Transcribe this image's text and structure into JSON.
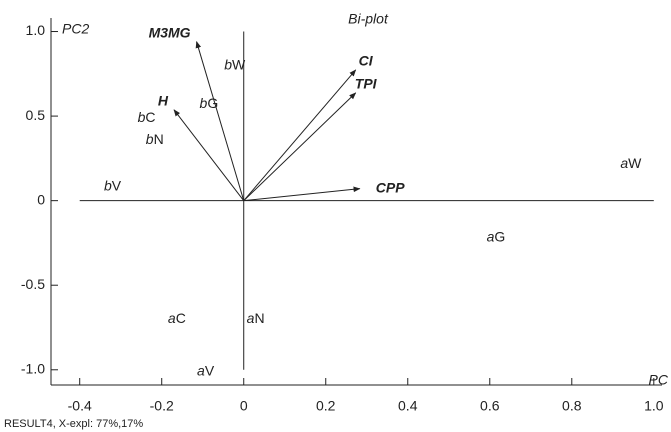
{
  "chart_data": {
    "type": "biplot",
    "title": "Bi-plot",
    "x_label": "PC",
    "y_label": "PC2",
    "footer": "RESULT4, X-expl: 77%,17%",
    "xlim": [
      -0.47,
      1.02
    ],
    "ylim": [
      -1.09,
      1.08
    ],
    "xticks": [
      -0.4,
      -0.2,
      0,
      0.2,
      0.4,
      0.6,
      0.8,
      {
        "value": 1,
        "label": "1.0"
      }
    ],
    "yticks": [
      {
        "value": -1,
        "label": "-1.0"
      },
      -0.5,
      0,
      0.5,
      {
        "value": 1,
        "label": "1.0"
      }
    ],
    "points": {
      "labels": [
        "aW",
        "aG",
        "aC",
        "aN",
        "aV",
        "bV",
        "bC",
        "bN",
        "bG",
        "bW"
      ],
      "x": [
        0.944,
        0.615,
        -0.163,
        0.029,
        -0.093,
        -0.32,
        -0.237,
        -0.217,
        -0.085,
        -0.022
      ],
      "y": [
        0.218,
        -0.218,
        -0.7,
        -0.7,
        -1.01,
        0.083,
        0.49,
        0.36,
        0.572,
        0.8
      ]
    },
    "vectors": {
      "labels": [
        "M3MG",
        "H",
        "CI",
        "TPI",
        "CPP"
      ],
      "x": [
        -0.115,
        -0.17,
        0.273,
        0.273,
        0.283
      ],
      "y": [
        0.94,
        0.537,
        0.773,
        0.637,
        0.071
      ]
    }
  }
}
